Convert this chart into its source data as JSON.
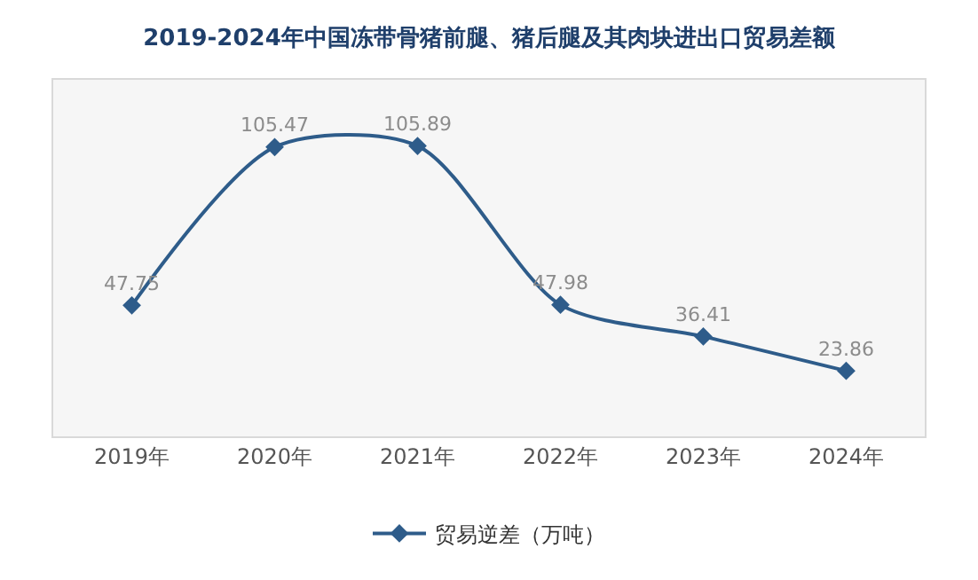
{
  "chart_data": {
    "type": "line",
    "title": "2019-2024年中国冻带骨猪前腿、猪后腿及其肉块进出口贸易差额",
    "categories": [
      "2019年",
      "2020年",
      "2021年",
      "2022年",
      "2023年",
      "2024年"
    ],
    "series": [
      {
        "name": "贸易逆差（万吨）",
        "color": "#2e5c8a",
        "values": [
          47.75,
          105.47,
          105.89,
          47.98,
          36.41,
          23.86
        ]
      }
    ],
    "ylim": [
      0,
      130
    ],
    "data_labels": true,
    "marker": "diamond",
    "line_style": "solid",
    "grid": false,
    "legend": "bottom",
    "tick_labels": "x"
  }
}
